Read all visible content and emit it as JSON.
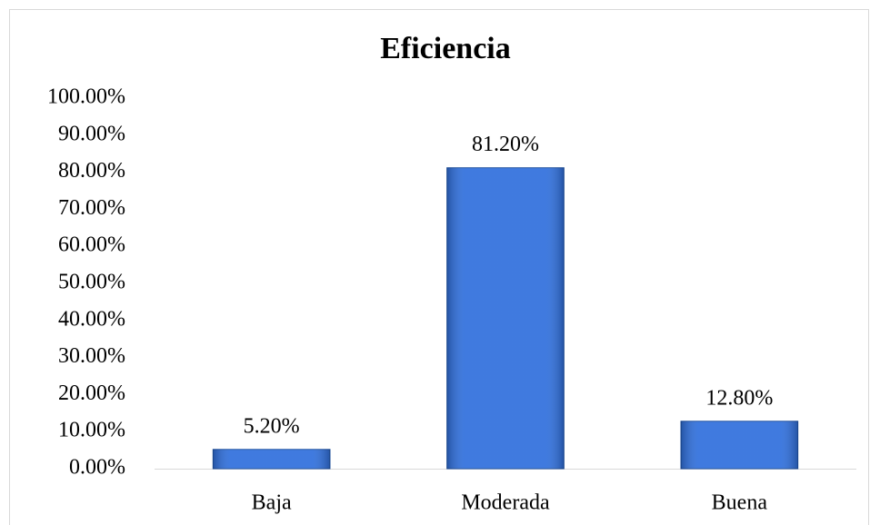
{
  "chart_data": {
    "type": "bar",
    "title": "Eficiencia",
    "categories": [
      "Baja",
      "Moderada",
      "Buena"
    ],
    "values": [
      5.2,
      81.2,
      12.8
    ],
    "value_labels": [
      "5.20%",
      "81.20%",
      "12.80%"
    ],
    "color": "#2f6fdc",
    "ylim": [
      0,
      100
    ],
    "yticks": [
      {
        "value": 0,
        "label": "0.00%"
      },
      {
        "value": 10,
        "label": "10.00%"
      },
      {
        "value": 20,
        "label": "20.00%"
      },
      {
        "value": 30,
        "label": "30.00%"
      },
      {
        "value": 40,
        "label": "40.00%"
      },
      {
        "value": 50,
        "label": "50.00%"
      },
      {
        "value": 60,
        "label": "60.00%"
      },
      {
        "value": 70,
        "label": "70.00%"
      },
      {
        "value": 80,
        "label": "80.00%"
      },
      {
        "value": 90,
        "label": "90.00%"
      },
      {
        "value": 100,
        "label": "100.00%"
      }
    ],
    "grid": false
  }
}
